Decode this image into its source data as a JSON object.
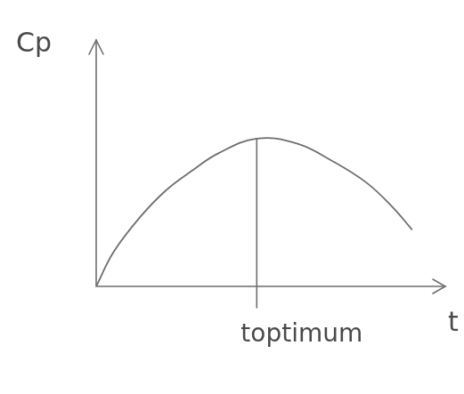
{
  "chart_data": {
    "type": "line",
    "xlabel": "t",
    "ylabel": "Cp",
    "x": [
      0,
      0.5,
      1.25,
      2,
      2.75,
      3.5,
      4.6,
      5.75,
      6.75,
      7.75,
      8.5,
      9.05
    ],
    "values": [
      0,
      1.4,
      2.8,
      3.9,
      4.7,
      5.4,
      6.0,
      5.8,
      5.1,
      4.2,
      3.2,
      2.3
    ],
    "color": "#6e6e6e",
    "xlim": [
      0,
      10
    ],
    "ylim": [
      0,
      10
    ],
    "xticks": [],
    "yticks": [],
    "grid": false,
    "tick_labels": false,
    "annotations": [
      {
        "type": "vline",
        "x": 4.6,
        "label": "toptimum"
      }
    ]
  }
}
